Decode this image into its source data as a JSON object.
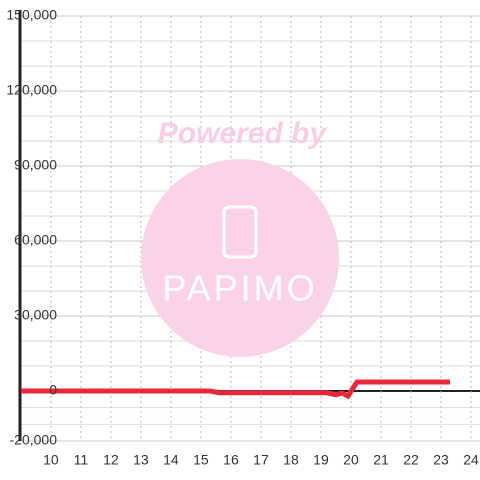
{
  "chart_data": {
    "type": "line",
    "x": [
      9,
      15.3,
      15.6,
      19.2,
      19.5,
      19.7,
      19.9,
      20.2,
      23.3
    ],
    "series": [
      {
        "color": "#e8283a",
        "values": [
          0,
          0,
          -700,
          -700,
          -1500,
          -800,
          -2000,
          3600,
          3600
        ]
      }
    ],
    "xlim": [
      8.97,
      24.3
    ],
    "xticks": [
      10,
      11,
      12,
      13,
      14,
      15,
      16,
      17,
      18,
      19,
      20,
      21,
      22,
      23,
      24
    ],
    "ylim": [
      -20000,
      150000
    ],
    "yticks": [
      {
        "value": -20000,
        "label": "-20,000"
      },
      0,
      {
        "value": 30000,
        "label": "30,000"
      },
      {
        "value": 60000,
        "label": "60,000"
      },
      {
        "value": 90000,
        "label": "90,000"
      },
      {
        "value": 120000,
        "label": "120,000"
      },
      {
        "value": 150000,
        "label": "150,000"
      }
    ],
    "grid": true,
    "watermark": [
      "Powered by",
      "PAPIMO"
    ]
  }
}
